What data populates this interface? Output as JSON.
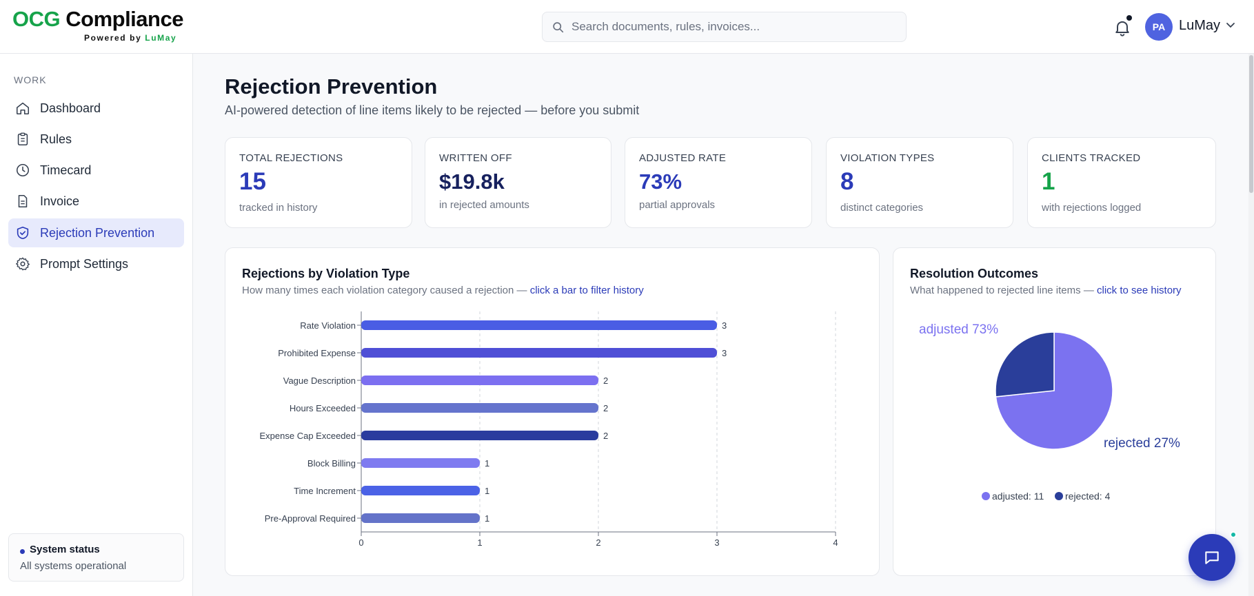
{
  "app": {
    "logo_ocg": "OCG",
    "logo_compliance": "Compliance",
    "logo_powered": "Powered by ",
    "logo_brand": "LuMay"
  },
  "header": {
    "search_placeholder": "Search documents, rules, invoices...",
    "user_initials": "PA",
    "user_name": "LuMay"
  },
  "sidebar": {
    "section": "WORK",
    "items": [
      {
        "label": "Dashboard",
        "icon": "home-icon"
      },
      {
        "label": "Rules",
        "icon": "clipboard-icon"
      },
      {
        "label": "Timecard",
        "icon": "clock-icon"
      },
      {
        "label": "Invoice",
        "icon": "document-icon"
      },
      {
        "label": "Rejection Prevention",
        "icon": "shield-check-icon",
        "active": true
      },
      {
        "label": "Prompt Settings",
        "icon": "gear-icon"
      }
    ],
    "status_title": "System status",
    "status_text": "All systems operational"
  },
  "page": {
    "title": "Rejection Prevention",
    "subtitle": "AI-powered detection of line items likely to be rejected — before you submit"
  },
  "stats": [
    {
      "label": "TOTAL REJECTIONS",
      "value": "15",
      "note": "tracked in history",
      "color": "#2b3bb8"
    },
    {
      "label": "WRITTEN OFF",
      "value": "$19.8k",
      "note": "in rejected amounts",
      "color": "#17215e"
    },
    {
      "label": "ADJUSTED RATE",
      "value": "73%",
      "note": "partial approvals",
      "color": "#2b3bb8"
    },
    {
      "label": "VIOLATION TYPES",
      "value": "8",
      "note": "distinct categories",
      "color": "#2b3bb8"
    },
    {
      "label": "CLIENTS TRACKED",
      "value": "1",
      "note": "with rejections logged",
      "color": "#16a34a"
    }
  ],
  "bar_panel": {
    "title": "Rejections by Violation Type",
    "desc": "How many times each violation category caused a rejection — ",
    "link": "click a bar to filter history"
  },
  "pie_panel": {
    "title": "Resolution Outcomes",
    "desc": "What happened to rejected line items — ",
    "link": "click to see history"
  },
  "chart_data": [
    {
      "type": "bar",
      "orientation": "horizontal",
      "categories": [
        "Rate Violation",
        "Prohibited Expense",
        "Vague Description",
        "Hours Exceeded",
        "Expense Cap Exceeded",
        "Block Billing",
        "Time Increment",
        "Pre-Approval Required"
      ],
      "values": [
        3,
        3,
        2,
        2,
        2,
        1,
        1,
        1
      ],
      "colors": [
        "#4a5de4",
        "#4f4fd6",
        "#7c6ff0",
        "#6574cd",
        "#2a3c9e",
        "#7f7bf0",
        "#4b62e6",
        "#6473c9"
      ],
      "xlim": [
        0,
        4
      ],
      "xticks": [
        0,
        1,
        2,
        3,
        4
      ],
      "grid": "vertical dashed"
    },
    {
      "type": "pie",
      "labels": [
        "adjusted",
        "rejected"
      ],
      "values": [
        11,
        4
      ],
      "percent_labels": [
        "adjusted 73%",
        "rejected 27%"
      ],
      "legend": [
        "adjusted: 11",
        "rejected: 4"
      ],
      "colors": [
        "#7b72f0",
        "#2a3e9a"
      ],
      "legend_position": "bottom"
    }
  ]
}
